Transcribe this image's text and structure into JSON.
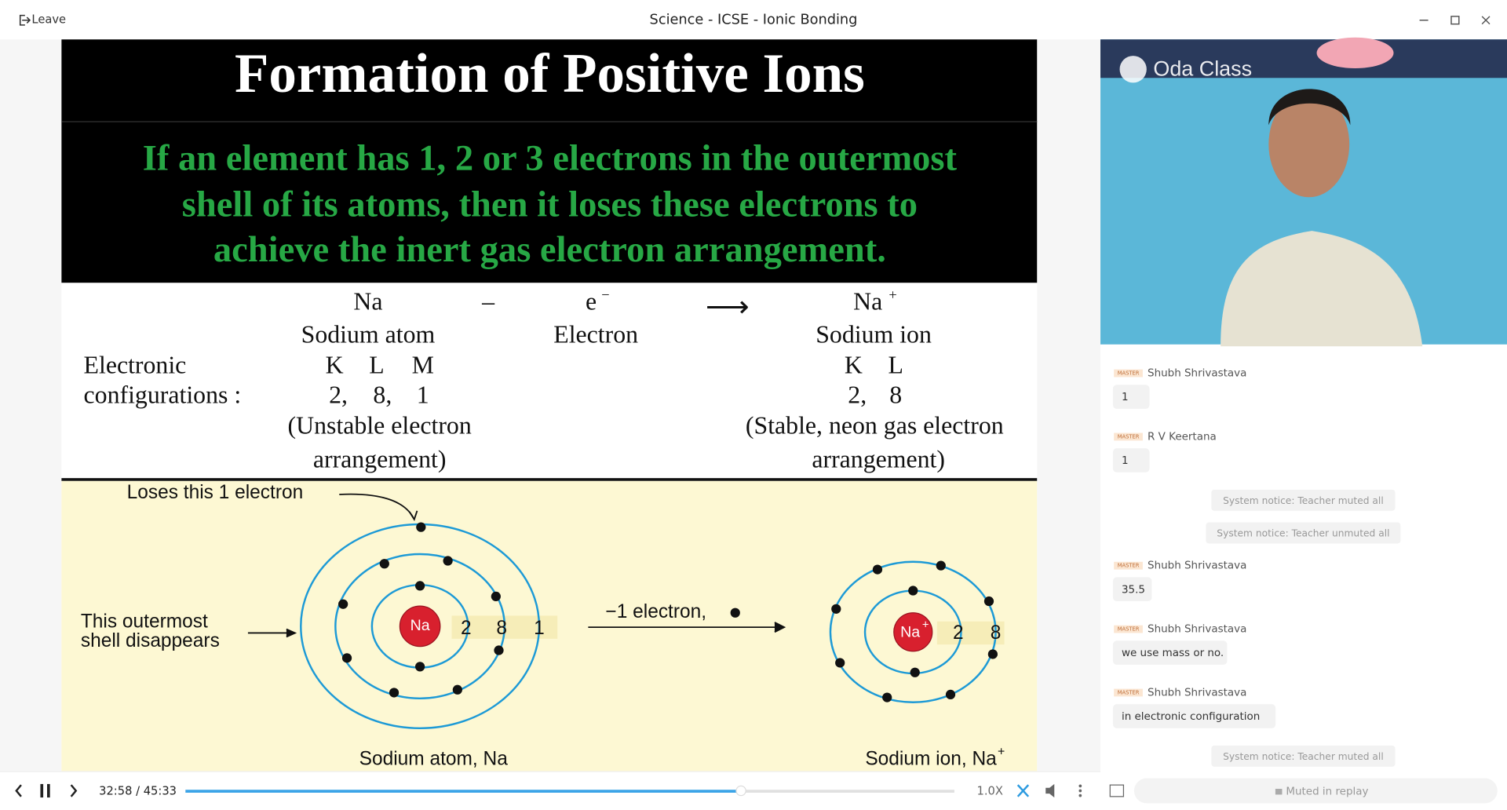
{
  "window": {
    "leave": "Leave",
    "title": "Science - ICSE - Ionic Bonding"
  },
  "slide": {
    "title": "Formation of Positive Ions",
    "statement_lines": [
      "If an element has 1, 2 or 3 electrons in the outermost",
      "shell of its atoms, then it loses these electrons to",
      "achieve the inert gas electron arrangement."
    ],
    "reactant": "Na",
    "minus": "–",
    "electron": "e",
    "electron_charge": "−",
    "arrow": "⟶",
    "product": "Na",
    "product_charge": "+",
    "reactant_name": "Sodium atom",
    "electron_name": "Electron",
    "product_name": "Sodium ion",
    "config_label_lines": [
      "Electronic",
      "configurations :"
    ],
    "atom_shells": [
      "K",
      "L",
      "M"
    ],
    "atom_config": [
      "2,",
      "8,",
      "1"
    ],
    "atom_note_lines": [
      "(Unstable electron",
      "arrangement)"
    ],
    "ion_shells": [
      "K",
      "L"
    ],
    "ion_config": [
      "2,",
      "8"
    ],
    "ion_note_lines": [
      "(Stable, neon gas electron",
      "arrangement)"
    ]
  },
  "diagram": {
    "loses_label": "Loses this 1 electron",
    "outer_shell_lines": [
      "This outermost",
      "shell disappears"
    ],
    "atom_symbol": "Na",
    "atom_shell_numbers": [
      "2",
      "8",
      "1"
    ],
    "transfer_label": "−1 electron,",
    "ion_symbol": "Na",
    "ion_charge": "+",
    "ion_shell_numbers": [
      "2",
      "8"
    ],
    "atom_caption": "Sodium atom, Na",
    "ion_caption": "Sodium ion, Na",
    "ion_caption_charge": "+"
  },
  "video": {
    "logo": "Oda Class"
  },
  "chat": {
    "items": [
      {
        "badge": "MASTER",
        "sender": "Shubh Shrivastava",
        "text": "1"
      },
      {
        "badge": "MASTER",
        "sender": "R V Keertana",
        "text": "1"
      },
      {
        "notice": "System notice: Teacher muted all"
      },
      {
        "notice": "System notice: Teacher unmuted all"
      },
      {
        "badge": "MASTER",
        "sender": "Shubh Shrivastava",
        "text": "35.5"
      },
      {
        "badge": "MASTER",
        "sender": "Shubh Shrivastava",
        "text": "we use mass or no."
      },
      {
        "badge": "MASTER",
        "sender": "Shubh Shrivastava",
        "text": "in electronic configuration"
      },
      {
        "notice": "System notice: Teacher muted all"
      }
    ],
    "input": "Muted in replay"
  },
  "player": {
    "time": "32:58 / 45:33",
    "speed": "1.0X"
  }
}
